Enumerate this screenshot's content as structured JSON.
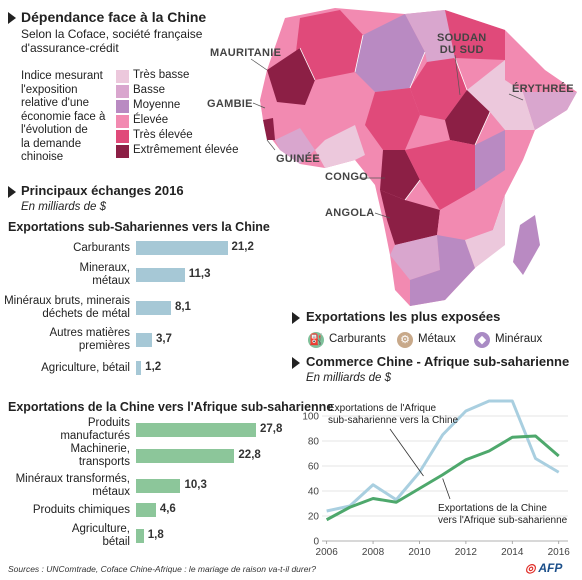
{
  "header": {
    "title": "Dépendance face à la Chine",
    "subtitle_line1": "Selon la Coface, société française",
    "subtitle_line2": "d'assurance-crédit"
  },
  "legend": {
    "description": [
      "Indice mesurant",
      "l'exposition",
      "relative d'une",
      "économie face à",
      "l'évolution de",
      "la demande",
      "chinoise"
    ],
    "items": [
      {
        "label": "Très basse",
        "color": "#ecc8dc"
      },
      {
        "label": "Basse",
        "color": "#d9a6ce"
      },
      {
        "label": "Moyenne",
        "color": "#b98ac2"
      },
      {
        "label": "Élevée",
        "color": "#f28ab1"
      },
      {
        "label": "Très élevée",
        "color": "#e04a7a"
      },
      {
        "label": "Extrêmement élevée",
        "color": "#8c1f45"
      }
    ]
  },
  "map_labels": {
    "mauritanie": "MAURITANIE",
    "gambie": "GAMBIE",
    "guinee": "GUINÉE",
    "soudan1": "SOUDAN",
    "soudan2": "DU SUD",
    "erythree": "ÉRYTHRÉE",
    "congo": "CONGO",
    "angola": "ANGOLA"
  },
  "exchanges": {
    "title": "Principaux échanges 2016",
    "unit": "En milliards de $"
  },
  "chart_data": [
    {
      "type": "bar",
      "title": "Exportations sub-Sahariennes vers la Chine",
      "categories": [
        "Carburants",
        "Mineraux, métaux",
        "Minéraux bruts, minerais déchets de métal",
        "Autres matières premières",
        "Agriculture, bétail"
      ],
      "category_lines": [
        [
          "Carburants"
        ],
        [
          "Mineraux,",
          "métaux"
        ],
        [
          "Minéraux bruts, minerais",
          "déchets de métal"
        ],
        [
          "Autres matières",
          "premières"
        ],
        [
          "Agriculture, bétail"
        ]
      ],
      "values": [
        21.2,
        11.3,
        8.1,
        3.7,
        1.2
      ],
      "value_labels": [
        "21,2",
        "11,3",
        "8,1",
        "3,7",
        "1,2"
      ],
      "color": "#a6c8d6"
    },
    {
      "type": "bar",
      "title": "Exportations de la Chine vers l'Afrique sub-saharienne",
      "categories": [
        "Produits manufacturés",
        "Machinerie, transports",
        "Minéraux transformés, métaux",
        "Produits chimiques",
        "Agriculture, bétail"
      ],
      "category_lines": [
        [
          "Produits",
          "manufacturés"
        ],
        [
          "Machinerie,",
          "transports"
        ],
        [
          "Minéraux transformés,",
          "métaux"
        ],
        [
          "Produits chimiques"
        ],
        [
          "Agriculture,",
          "bétail"
        ]
      ],
      "values": [
        27.8,
        22.8,
        10.3,
        4.6,
        1.8
      ],
      "value_labels": [
        "27,8",
        "22,8",
        "10,3",
        "4,6",
        "1,8"
      ],
      "color": "#8cc69a"
    },
    {
      "type": "line",
      "title": "Commerce Chine  - Afrique sub-saharienne",
      "unit": "En milliards de $",
      "x": [
        2006,
        2007,
        2008,
        2009,
        2010,
        2011,
        2012,
        2013,
        2014,
        2015,
        2016
      ],
      "xticks": [
        2006,
        2008,
        2010,
        2012,
        2014,
        2016
      ],
      "yticks": [
        0,
        20,
        40,
        60,
        80,
        100
      ],
      "ylim": [
        0,
        120
      ],
      "xlim": [
        2005.8,
        2016.4
      ],
      "grid": true,
      "series": [
        {
          "label_lines": [
            "Exportations  de l'Afrique",
            "sub-saharienne vers la Chine"
          ],
          "color": "#a9cfe0",
          "values": [
            24,
            28,
            45,
            33,
            55,
            85,
            104,
            112,
            112,
            66,
            55
          ]
        },
        {
          "label_lines": [
            "Exportations de la Chine",
            "vers l'Afrique sub-saharienne"
          ],
          "color": "#4ea86c",
          "values": [
            17,
            27,
            34,
            31,
            42,
            53,
            65,
            72,
            83,
            84,
            68
          ]
        }
      ]
    }
  ],
  "exposures": {
    "title": "Exportations les plus exposées",
    "items": [
      {
        "label": "Carburants",
        "icon": "oil-pump-icon",
        "color": "#7fc19b"
      },
      {
        "label": "Métaux",
        "icon": "gears-icon",
        "color": "#c8a98a"
      },
      {
        "label": "Minéraux",
        "icon": "diamond-icon",
        "color": "#a98bc4"
      }
    ]
  },
  "footer": {
    "source": "Sources : UNComtrade, Coface Chine-Afrique : le mariage de raison va-t-il durer?",
    "logo": "AFP"
  }
}
